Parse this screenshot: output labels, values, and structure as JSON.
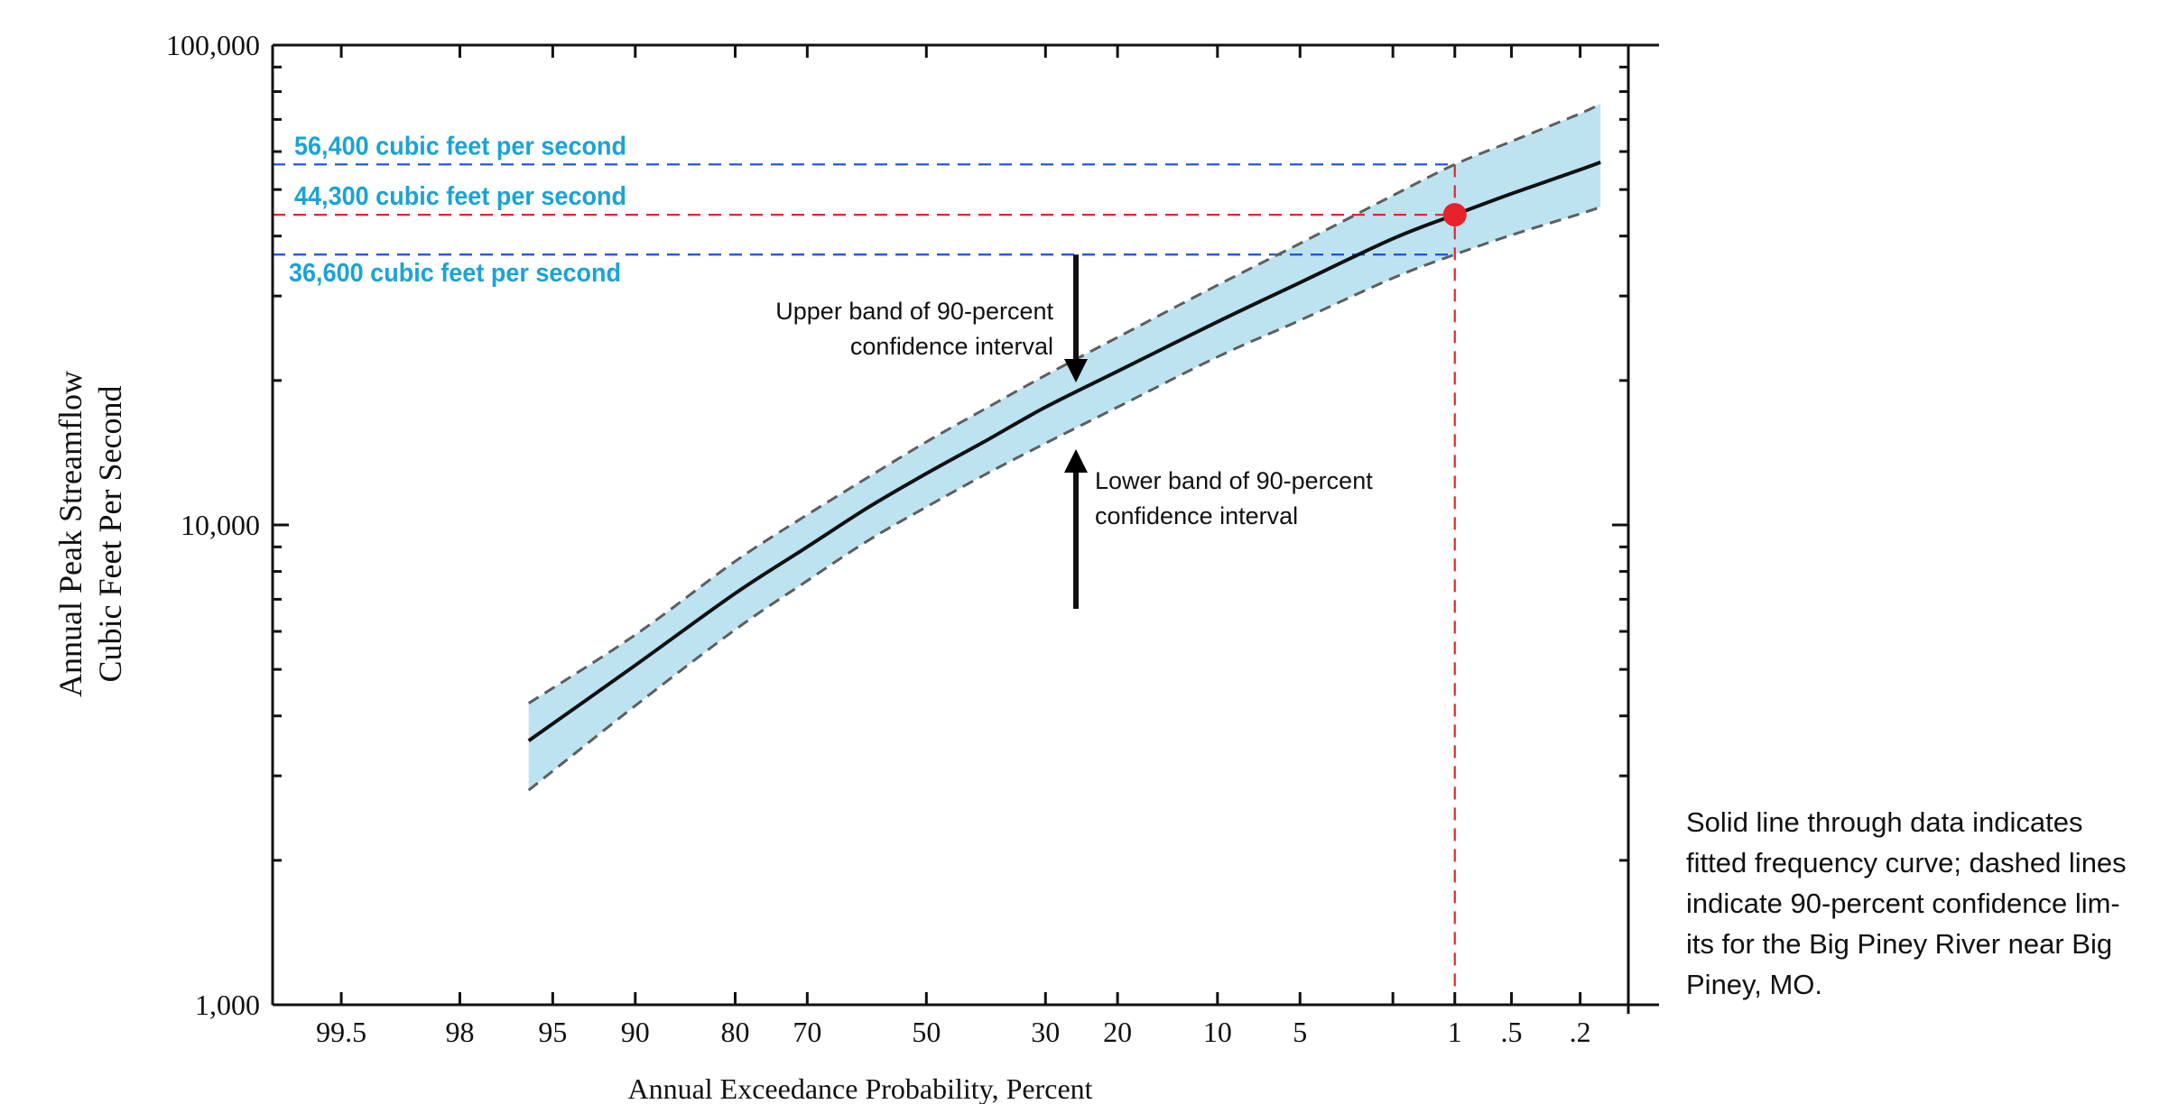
{
  "chart_data": {
    "type": "line",
    "xlabel": "Annual Exceedance Probability, Percent",
    "ylabel": [
      "Annual Peak Streamflow",
      "Cubic Feet Per Second"
    ],
    "x_scale": "normal-probability (reversed)",
    "y_scale": "log",
    "ylim": [
      1000,
      100000
    ],
    "xlim": [
      99.8,
      0.1
    ],
    "y_ticks": [
      {
        "value": 1000,
        "label": "1,000"
      },
      {
        "value": 10000,
        "label": "10,000"
      },
      {
        "value": 100000,
        "label": "100,000"
      }
    ],
    "x_ticks": [
      {
        "value": 99.5,
        "label": "99.5"
      },
      {
        "value": 98,
        "label": "98"
      },
      {
        "value": 95,
        "label": "95"
      },
      {
        "value": 90,
        "label": "90"
      },
      {
        "value": 80,
        "label": "80"
      },
      {
        "value": 70,
        "label": "70"
      },
      {
        "value": 50,
        "label": "50"
      },
      {
        "value": 30,
        "label": "30"
      },
      {
        "value": 20,
        "label": "20"
      },
      {
        "value": 10,
        "label": "10"
      },
      {
        "value": 5,
        "label": "5"
      },
      {
        "value": 1,
        "label": "1"
      },
      {
        "value": 0.5,
        "label": ".5"
      },
      {
        "value": 0.2,
        "label": ".2"
      }
    ],
    "x_minor_ticks": [
      99.5,
      98,
      95,
      90,
      80,
      70,
      50,
      30,
      20,
      10,
      5,
      2,
      1,
      0.5,
      0.2
    ],
    "series": [
      {
        "role": "fitted",
        "x": [
          96,
          90,
          80,
          70,
          60,
          50,
          40,
          30,
          20,
          10,
          5,
          2,
          1,
          0.5,
          0.2,
          0.15
        ],
        "y": [
          3550,
          5100,
          7200,
          9000,
          10900,
          12800,
          14900,
          17600,
          20900,
          26500,
          32000,
          39500,
          44300,
          49000,
          55000,
          57000
        ]
      },
      {
        "role": "upper-confidence",
        "x": [
          96,
          90,
          80,
          70,
          60,
          50,
          40,
          30,
          20,
          10,
          5,
          2,
          1,
          0.5,
          0.2,
          0.15
        ],
        "y": [
          4250,
          5900,
          8400,
          10500,
          12600,
          14900,
          17400,
          20500,
          24600,
          31600,
          38600,
          48600,
          56400,
          63000,
          72000,
          75500
        ]
      },
      {
        "role": "lower-confidence",
        "x": [
          96,
          90,
          80,
          70,
          60,
          50,
          40,
          30,
          20,
          10,
          5,
          2,
          1,
          0.5,
          0.2,
          0.15
        ],
        "y": [
          2800,
          4200,
          6050,
          7650,
          9300,
          10900,
          12700,
          14800,
          17600,
          22400,
          26700,
          32700,
          36600,
          40200,
          44500,
          46000
        ]
      }
    ],
    "highlight_point": {
      "x": 1,
      "y": 44300
    },
    "reference_lines": [
      {
        "y": 56400,
        "label": "56,400 cubic feet per second",
        "color": "#1a4fd6"
      },
      {
        "y": 44300,
        "label": "44,300 cubic feet per second",
        "color": "#e3262b"
      },
      {
        "y": 36600,
        "label": "36,600 cubic feet per second",
        "color": "#1a4fd6"
      }
    ],
    "annotations": {
      "upper": [
        "Upper band of 90-percent",
        "confidence interval"
      ],
      "lower": [
        "Lower band of 90-percent",
        "confidence interval"
      ]
    },
    "caption": [
      "Solid line through data indicates",
      "fitted frequency curve; dashed lines",
      "indicate 90-percent confidence lim-",
      "its for the Big Piney River near Big",
      "Piney, MO."
    ],
    "colors": {
      "band_fill": "#bde3f1",
      "band_edge": "#5e5e5e",
      "fitted": "#111111",
      "blue_ref": "#1a4fd6",
      "red_ref": "#e3262b",
      "label_cyan": "#1aa3d6",
      "point": "#e8222c"
    }
  }
}
